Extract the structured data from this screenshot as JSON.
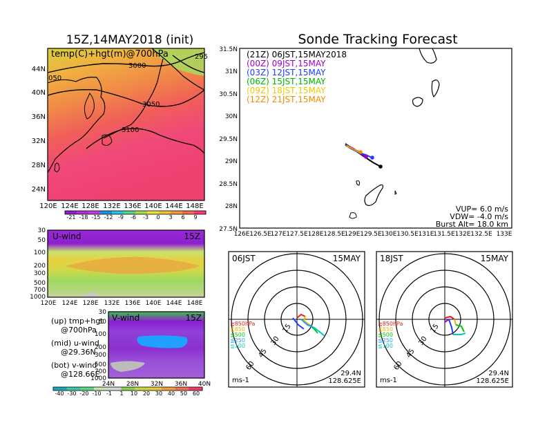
{
  "header": {
    "left_title": "15Z,14MAY2018 (init)",
    "right_title": "Sonde Tracking Forecast"
  },
  "colors": {
    "temp_scale": [
      "#8c1fd0",
      "#b030d8",
      "#c03cd8",
      "#1f8fe0",
      "#30c0d8",
      "#5cd08c",
      "#a0dc50",
      "#e8e040",
      "#f0c040",
      "#f09a40",
      "#f06e50",
      "#f04070"
    ],
    "wind_scale": [
      "#1aa8b8",
      "#3cc8a8",
      "#5cd888",
      "#c8e8b0",
      "#d8d8d8",
      "#8cd050",
      "#c8d840",
      "#e8c83c",
      "#f0a040",
      "#f07050",
      "#f03c6c"
    ]
  },
  "temp_map": {
    "label": "temp(C)+hgt(m)@700hPa",
    "contour_labels": [
      "3000",
      "3050",
      "3100",
      "050",
      "295"
    ],
    "x_ticks": [
      "120E",
      "124E",
      "128E",
      "132E",
      "136E",
      "140E",
      "144E",
      "148E"
    ],
    "y_ticks": [
      "44N",
      "40N",
      "36N",
      "32N",
      "28N",
      "24N"
    ],
    "colorbar_labels": [
      "-21",
      "-18",
      "-15",
      "-12",
      "-9",
      "-6",
      "-3",
      "0",
      "3",
      "6",
      "9"
    ]
  },
  "u_wind": {
    "label": "U-wind",
    "time": "15Z",
    "y_ticks": [
      "30",
      "50",
      "100",
      "200",
      "300",
      "500",
      "700",
      "1000"
    ],
    "x_ticks": [
      "120E",
      "124E",
      "128E",
      "132E",
      "136E",
      "140E",
      "144E",
      "148E"
    ]
  },
  "v_wind": {
    "label": "V-wind",
    "time": "15Z",
    "y_ticks": [
      "30",
      "50",
      "100",
      "200",
      "300",
      "500",
      "700",
      "1000"
    ],
    "x_ticks": [
      "24N",
      "28N",
      "32N",
      "36N",
      "40N"
    ],
    "colorbar_labels": [
      "-40",
      "-30",
      "-20",
      "-10",
      "-1",
      "1",
      "10",
      "20",
      "30",
      "40",
      "50",
      "60"
    ]
  },
  "legend_text": {
    "up_1": "(up) tmp+hgt",
    "up_2": "@700hPa",
    "mid_1": "(mid) u-wind",
    "mid_2": "@29.36N",
    "bot_1": "(bot) v-wind",
    "bot_2": "@128.66E"
  },
  "track": {
    "header_time": "(21Z)  06JST,15MAY2018",
    "entries": [
      {
        "text": "(00Z)  09JST,15MAY",
        "color": "#a000c8"
      },
      {
        "text": "(03Z)  12JST,15MAY",
        "color": "#1e3cff"
      },
      {
        "text": "(06Z)  15JST,15MAY",
        "color": "#00b400"
      },
      {
        "text": "(09Z)  18JST,15MAY",
        "color": "#f0c800"
      },
      {
        "text": "(12Z)  21JST,15MAY",
        "color": "#f08c00"
      }
    ],
    "x_ticks": [
      "126E",
      "126.5E",
      "127E",
      "127.5E",
      "128E",
      "128.5E",
      "129E",
      "129.5E",
      "130E",
      "130.5E",
      "131E",
      "131.5E",
      "132E",
      "132.5E",
      "133E"
    ],
    "y_ticks": [
      "31.5N",
      "31N",
      "30.5N",
      "30N",
      "29.5N",
      "29N",
      "28.5N",
      "28N",
      "27.5N"
    ],
    "vup": "VUP=  6.0  m/s",
    "vdw": "VDW= -4.0  m/s",
    "burst": "Burst Alt=  18.0  km"
  },
  "hodo_left": {
    "time": "06JST",
    "date": "15MAY",
    "ring_labels": [
      "15",
      "30",
      "45",
      "60"
    ],
    "levels": [
      "≧850hPa",
      "≦850",
      "≦500",
      "≦250",
      "≦100"
    ],
    "level_colors": [
      "#e02020",
      "#f0b400",
      "#00c800",
      "#20a0ff",
      "#00c8c8"
    ],
    "unit": "ms-1",
    "lat": "29.4N",
    "lon": "128.625E"
  },
  "hodo_right": {
    "time": "18JST",
    "date": "15MAY",
    "ring_labels": [
      "15",
      "30",
      "45",
      "60"
    ],
    "levels": [
      "≧850hPa",
      "≦850",
      "≦500",
      "≦250",
      "≦100"
    ],
    "level_colors": [
      "#e02020",
      "#f0b400",
      "#00c800",
      "#20a0ff",
      "#00c8c8"
    ],
    "unit": "ms-1",
    "lat": "29.4N",
    "lon": "128.625E"
  }
}
